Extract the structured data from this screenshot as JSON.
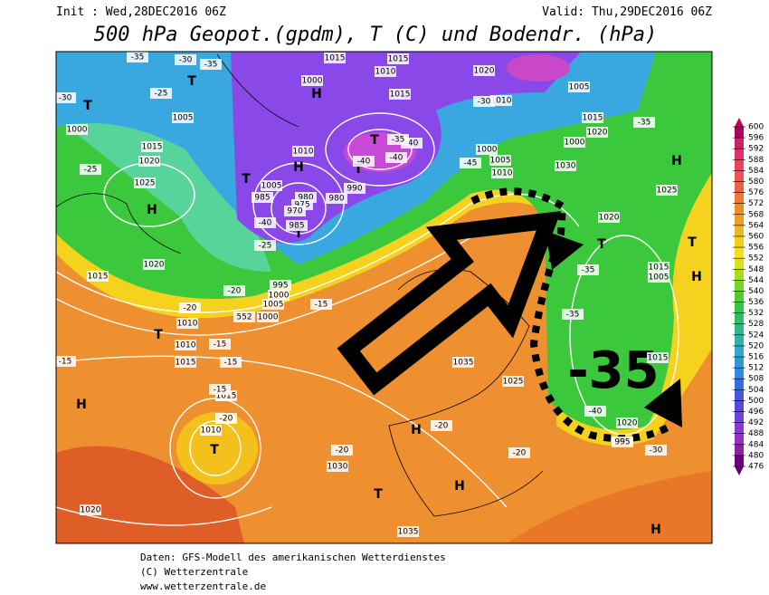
{
  "header": {
    "init": "Init : Wed,28DEC2016 06Z",
    "valid": "Valid: Thu,29DEC2016 06Z",
    "title": "500 hPa Geopot.(gpdm), T (C) und Bodendr. (hPa)"
  },
  "legend": {
    "values": [
      600,
      596,
      592,
      588,
      584,
      580,
      576,
      572,
      568,
      564,
      560,
      556,
      552,
      548,
      544,
      540,
      536,
      532,
      528,
      524,
      520,
      516,
      512,
      508,
      504,
      500,
      496,
      492,
      488,
      484,
      480,
      476
    ]
  },
  "map": {
    "labels": [
      "T",
      "H",
      "T",
      "H",
      "H",
      "T",
      "T",
      "T",
      "T",
      "H",
      "T",
      "T",
      "H",
      "T",
      "H",
      "T",
      "H",
      "H",
      "T",
      "H",
      "1000",
      "1005",
      "1015",
      "1020",
      "1025",
      "1020",
      "1015",
      "1010",
      "552",
      "1010",
      "1015",
      "1015",
      "1010",
      "1020",
      "1030",
      "1035",
      "1035",
      "1025",
      "1030",
      "1025",
      "1020",
      "1015",
      "1005",
      "1015",
      "1020",
      "995",
      "1000",
      "1005",
      "1010",
      "1015",
      "1020",
      "1000",
      "1005",
      "1010",
      "1020",
      "1015",
      "1010",
      "1015",
      "1000",
      "1015",
      "1010",
      "1005",
      "985",
      "980",
      "975",
      "970",
      "985",
      "980",
      "990",
      "995",
      "1000",
      "1005",
      "1000",
      "-35",
      "-30",
      "-35",
      "-30",
      "-25",
      "-25",
      "-25",
      "-20",
      "-20",
      "-15",
      "-15",
      "-15",
      "-15",
      "-15",
      "-20",
      "-20",
      "-20",
      "-20",
      "-30",
      "-35",
      "-35",
      "-35",
      "-40",
      "-40",
      "-40",
      "-40",
      "-40",
      "-45",
      "-35",
      "-30"
    ],
    "annotation": "-35"
  },
  "footer": {
    "lines": [
      "Daten: GFS-Modell des amerikanischen Wetterdienstes",
      "(C) Wetterzentrale",
      "www.wetterzentrale.de"
    ]
  }
}
